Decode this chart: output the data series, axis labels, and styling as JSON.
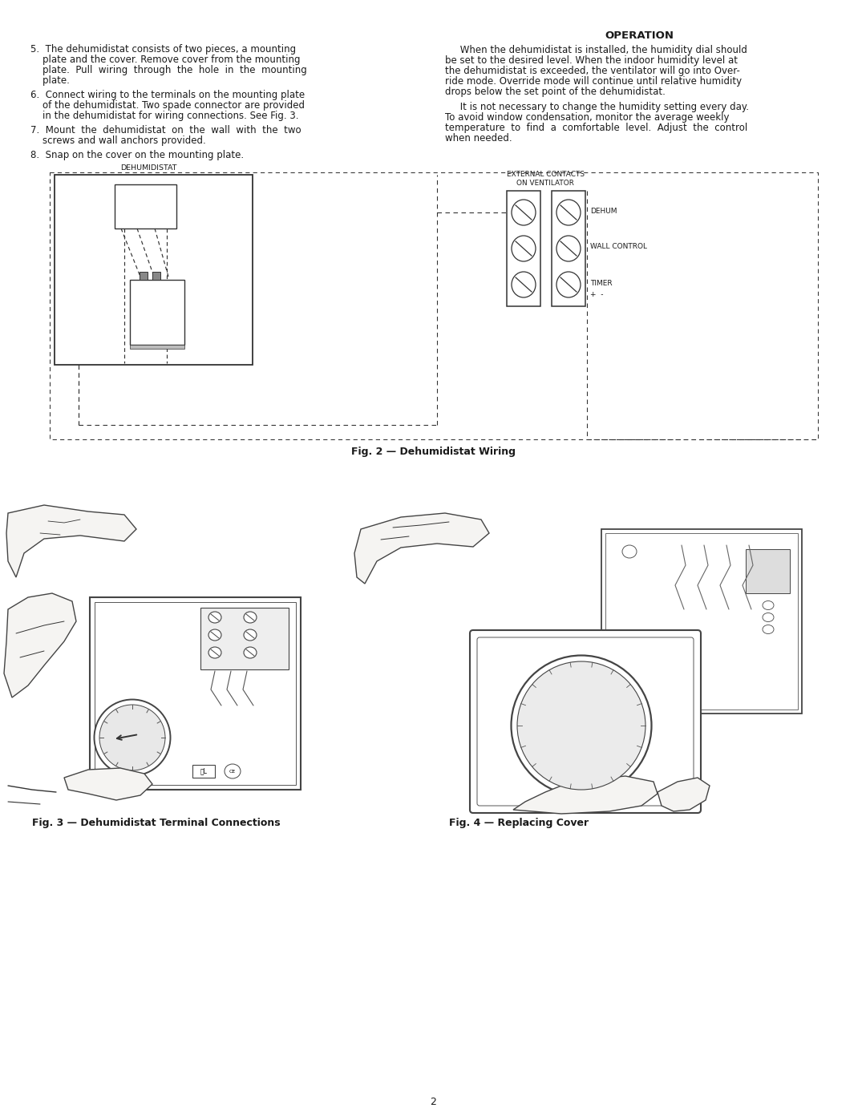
{
  "bg_color": "#ffffff",
  "text_color": "#1a1a1a",
  "page_width": 10.8,
  "page_height": 13.97,
  "dpi": 100,
  "step5_lines": [
    "5.  The dehumidistat consists of two pieces, a mounting",
    "    plate and the cover. Remove cover from the mounting",
    "    plate.  Pull  wiring  through  the  hole  in  the  mounting",
    "    plate."
  ],
  "step6_lines": [
    "6.  Connect wiring to the terminals on the mounting plate",
    "    of the dehumidistat. Two spade connector are provided",
    "    in the dehumidistat for wiring connections. See Fig. 3."
  ],
  "step7_lines": [
    "7.  Mount  the  dehumidistat  on  the  wall  with  the  two",
    "    screws and wall anchors provided."
  ],
  "step8_lines": [
    "8.  Snap on the cover on the mounting plate."
  ],
  "operation_title": "OPERATION",
  "op_p1_lines": [
    "     When the dehumidistat is installed, the humidity dial should",
    "be set to the desired level. When the indoor humidity level at",
    "the dehumidistat is exceeded, the ventilator will go into Over-",
    "ride mode. Override mode will continue until relative humidity",
    "drops below the set point of the dehumidistat."
  ],
  "op_p2_lines": [
    "     It is not necessary to change the humidity setting every day.",
    "To avoid window condensation, monitor the average weekly",
    "temperature  to  find  a  comfortable  level.  Adjust  the  control",
    "when needed."
  ],
  "dehumidistat_label": "DEHUMIDISTAT",
  "external_label_1": "EXTERNAL CONTACTS",
  "external_label_2": "ON VENTILATOR",
  "dehum_label": "DEHUM",
  "wall_control_label": "WALL CONTROL",
  "timer_label": "TIMER",
  "timer_pm": "+  -",
  "fig2_caption": "Fig. 2 — Dehumidistat Wiring",
  "fig3_caption": "Fig. 3 — Dehumidistat Terminal Connections",
  "fig4_caption": "Fig. 4 — Replacing Cover",
  "page_number": "2",
  "fs_body": 8.5,
  "fs_small": 6.5,
  "fs_caption": 9.0,
  "fs_title": 9.5,
  "fs_page": 9.0,
  "lh": 13.0
}
